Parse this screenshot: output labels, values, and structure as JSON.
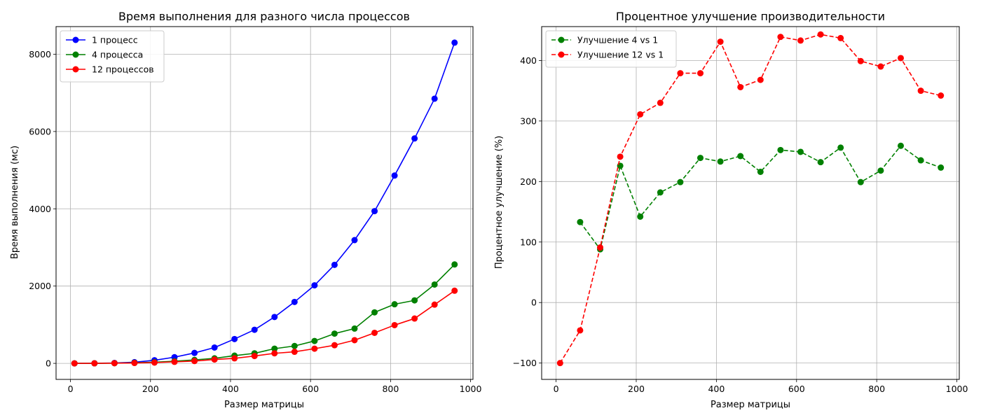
{
  "chart_data": [
    {
      "type": "line",
      "title": "Время выполнения для разного числа процессов",
      "xlabel": "Размер матрицы",
      "ylabel": "Время выполнения (мс)",
      "xlim": [
        -36,
        1006
      ],
      "ylim": [
        -415,
        8715
      ],
      "xticks": [
        0,
        200,
        400,
        600,
        800,
        1000
      ],
      "yticks": [
        0,
        2000,
        4000,
        6000,
        8000
      ],
      "grid": true,
      "legend_position": "upper-left",
      "series": [
        {
          "name": "1 процесс",
          "color": "#0000ff",
          "dashed": false,
          "x": [
            10,
            60,
            110,
            160,
            210,
            260,
            310,
            360,
            410,
            460,
            510,
            560,
            610,
            660,
            710,
            760,
            810,
            860,
            910,
            960
          ],
          "y": [
            0,
            2,
            10,
            30,
            80,
            160,
            270,
            410,
            630,
            870,
            1200,
            1590,
            2020,
            2550,
            3190,
            3940,
            4860,
            5820,
            6850,
            8300
          ]
        },
        {
          "name": "4 процесса",
          "color": "#008000",
          "dashed": false,
          "x": [
            10,
            60,
            110,
            160,
            210,
            260,
            310,
            360,
            410,
            460,
            510,
            560,
            610,
            660,
            710,
            760,
            810,
            860,
            910,
            960
          ],
          "y": [
            0,
            1,
            5,
            15,
            30,
            55,
            90,
            130,
            200,
            260,
            380,
            450,
            580,
            770,
            900,
            1320,
            1530,
            1630,
            2040,
            2560
          ]
        },
        {
          "name": "12 процессов",
          "color": "#ff0000",
          "dashed": false,
          "x": [
            10,
            60,
            110,
            160,
            210,
            260,
            310,
            360,
            410,
            460,
            510,
            560,
            610,
            660,
            710,
            760,
            810,
            860,
            910,
            960
          ],
          "y": [
            0,
            1,
            5,
            10,
            20,
            40,
            60,
            100,
            130,
            190,
            260,
            300,
            380,
            470,
            600,
            790,
            990,
            1160,
            1520,
            1880
          ]
        }
      ]
    },
    {
      "type": "line",
      "title": "Процентное улучшение производительности",
      "xlabel": "Размер матрицы",
      "ylabel": "Процентное улучшение (%)",
      "xlim": [
        -36,
        1006
      ],
      "ylim": [
        -127,
        456
      ],
      "xticks": [
        0,
        200,
        400,
        600,
        800,
        1000
      ],
      "yticks": [
        -100,
        0,
        100,
        200,
        300,
        400
      ],
      "grid": true,
      "legend_position": "upper-left",
      "series": [
        {
          "name": "Улучшение 4 vs 1",
          "color": "#008000",
          "dashed": true,
          "x": [
            60,
            110,
            160,
            210,
            260,
            310,
            360,
            410,
            460,
            510,
            560,
            610,
            660,
            710,
            760,
            810,
            860,
            910,
            960
          ],
          "y": [
            133,
            88,
            226,
            142,
            182,
            199,
            239,
            233,
            242,
            216,
            252,
            249,
            232,
            256,
            199,
            218,
            259,
            235,
            223
          ]
        },
        {
          "name": "Улучшение 12 vs 1",
          "color": "#ff0000",
          "dashed": true,
          "x": [
            10,
            60,
            110,
            160,
            210,
            260,
            310,
            360,
            410,
            460,
            510,
            560,
            610,
            660,
            710,
            760,
            810,
            860,
            910,
            960
          ],
          "y": [
            -100,
            -46,
            91,
            241,
            311,
            330,
            379,
            379,
            431,
            356,
            368,
            439,
            433,
            443,
            437,
            399,
            390,
            404,
            350,
            342
          ]
        }
      ]
    }
  ]
}
